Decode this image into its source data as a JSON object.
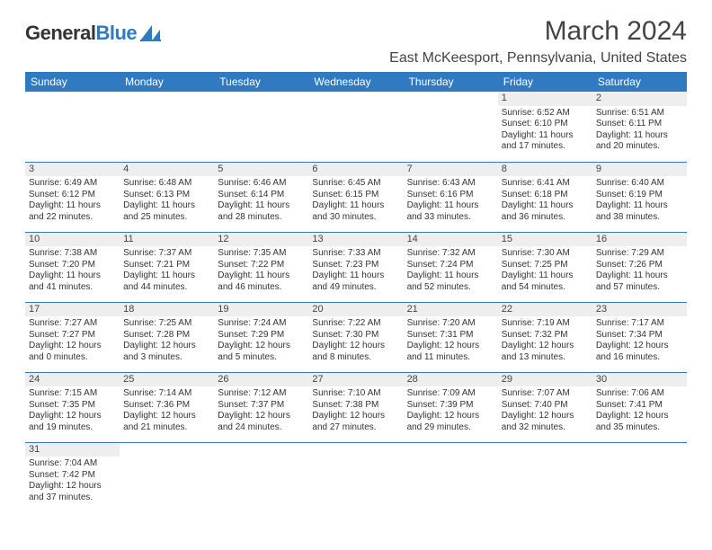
{
  "brand": {
    "part1": "General",
    "part2": "Blue"
  },
  "title": "March 2024",
  "location": "East McKeesport, Pennsylvania, United States",
  "colors": {
    "header_bg": "#2f7ac0",
    "header_fg": "#ffffff",
    "daynum_bg": "#eeeeee",
    "cell_border": "#2f7ac0",
    "text": "#333333",
    "brand_blue": "#2f7ac0"
  },
  "week_headers": [
    "Sunday",
    "Monday",
    "Tuesday",
    "Wednesday",
    "Thursday",
    "Friday",
    "Saturday"
  ],
  "days": {
    "1": {
      "sunrise": "Sunrise: 6:52 AM",
      "sunset": "Sunset: 6:10 PM",
      "day1": "Daylight: 11 hours",
      "day2": "and 17 minutes."
    },
    "2": {
      "sunrise": "Sunrise: 6:51 AM",
      "sunset": "Sunset: 6:11 PM",
      "day1": "Daylight: 11 hours",
      "day2": "and 20 minutes."
    },
    "3": {
      "sunrise": "Sunrise: 6:49 AM",
      "sunset": "Sunset: 6:12 PM",
      "day1": "Daylight: 11 hours",
      "day2": "and 22 minutes."
    },
    "4": {
      "sunrise": "Sunrise: 6:48 AM",
      "sunset": "Sunset: 6:13 PM",
      "day1": "Daylight: 11 hours",
      "day2": "and 25 minutes."
    },
    "5": {
      "sunrise": "Sunrise: 6:46 AM",
      "sunset": "Sunset: 6:14 PM",
      "day1": "Daylight: 11 hours",
      "day2": "and 28 minutes."
    },
    "6": {
      "sunrise": "Sunrise: 6:45 AM",
      "sunset": "Sunset: 6:15 PM",
      "day1": "Daylight: 11 hours",
      "day2": "and 30 minutes."
    },
    "7": {
      "sunrise": "Sunrise: 6:43 AM",
      "sunset": "Sunset: 6:16 PM",
      "day1": "Daylight: 11 hours",
      "day2": "and 33 minutes."
    },
    "8": {
      "sunrise": "Sunrise: 6:41 AM",
      "sunset": "Sunset: 6:18 PM",
      "day1": "Daylight: 11 hours",
      "day2": "and 36 minutes."
    },
    "9": {
      "sunrise": "Sunrise: 6:40 AM",
      "sunset": "Sunset: 6:19 PM",
      "day1": "Daylight: 11 hours",
      "day2": "and 38 minutes."
    },
    "10": {
      "sunrise": "Sunrise: 7:38 AM",
      "sunset": "Sunset: 7:20 PM",
      "day1": "Daylight: 11 hours",
      "day2": "and 41 minutes."
    },
    "11": {
      "sunrise": "Sunrise: 7:37 AM",
      "sunset": "Sunset: 7:21 PM",
      "day1": "Daylight: 11 hours",
      "day2": "and 44 minutes."
    },
    "12": {
      "sunrise": "Sunrise: 7:35 AM",
      "sunset": "Sunset: 7:22 PM",
      "day1": "Daylight: 11 hours",
      "day2": "and 46 minutes."
    },
    "13": {
      "sunrise": "Sunrise: 7:33 AM",
      "sunset": "Sunset: 7:23 PM",
      "day1": "Daylight: 11 hours",
      "day2": "and 49 minutes."
    },
    "14": {
      "sunrise": "Sunrise: 7:32 AM",
      "sunset": "Sunset: 7:24 PM",
      "day1": "Daylight: 11 hours",
      "day2": "and 52 minutes."
    },
    "15": {
      "sunrise": "Sunrise: 7:30 AM",
      "sunset": "Sunset: 7:25 PM",
      "day1": "Daylight: 11 hours",
      "day2": "and 54 minutes."
    },
    "16": {
      "sunrise": "Sunrise: 7:29 AM",
      "sunset": "Sunset: 7:26 PM",
      "day1": "Daylight: 11 hours",
      "day2": "and 57 minutes."
    },
    "17": {
      "sunrise": "Sunrise: 7:27 AM",
      "sunset": "Sunset: 7:27 PM",
      "day1": "Daylight: 12 hours",
      "day2": "and 0 minutes."
    },
    "18": {
      "sunrise": "Sunrise: 7:25 AM",
      "sunset": "Sunset: 7:28 PM",
      "day1": "Daylight: 12 hours",
      "day2": "and 3 minutes."
    },
    "19": {
      "sunrise": "Sunrise: 7:24 AM",
      "sunset": "Sunset: 7:29 PM",
      "day1": "Daylight: 12 hours",
      "day2": "and 5 minutes."
    },
    "20": {
      "sunrise": "Sunrise: 7:22 AM",
      "sunset": "Sunset: 7:30 PM",
      "day1": "Daylight: 12 hours",
      "day2": "and 8 minutes."
    },
    "21": {
      "sunrise": "Sunrise: 7:20 AM",
      "sunset": "Sunset: 7:31 PM",
      "day1": "Daylight: 12 hours",
      "day2": "and 11 minutes."
    },
    "22": {
      "sunrise": "Sunrise: 7:19 AM",
      "sunset": "Sunset: 7:32 PM",
      "day1": "Daylight: 12 hours",
      "day2": "and 13 minutes."
    },
    "23": {
      "sunrise": "Sunrise: 7:17 AM",
      "sunset": "Sunset: 7:34 PM",
      "day1": "Daylight: 12 hours",
      "day2": "and 16 minutes."
    },
    "24": {
      "sunrise": "Sunrise: 7:15 AM",
      "sunset": "Sunset: 7:35 PM",
      "day1": "Daylight: 12 hours",
      "day2": "and 19 minutes."
    },
    "25": {
      "sunrise": "Sunrise: 7:14 AM",
      "sunset": "Sunset: 7:36 PM",
      "day1": "Daylight: 12 hours",
      "day2": "and 21 minutes."
    },
    "26": {
      "sunrise": "Sunrise: 7:12 AM",
      "sunset": "Sunset: 7:37 PM",
      "day1": "Daylight: 12 hours",
      "day2": "and 24 minutes."
    },
    "27": {
      "sunrise": "Sunrise: 7:10 AM",
      "sunset": "Sunset: 7:38 PM",
      "day1": "Daylight: 12 hours",
      "day2": "and 27 minutes."
    },
    "28": {
      "sunrise": "Sunrise: 7:09 AM",
      "sunset": "Sunset: 7:39 PM",
      "day1": "Daylight: 12 hours",
      "day2": "and 29 minutes."
    },
    "29": {
      "sunrise": "Sunrise: 7:07 AM",
      "sunset": "Sunset: 7:40 PM",
      "day1": "Daylight: 12 hours",
      "day2": "and 32 minutes."
    },
    "30": {
      "sunrise": "Sunrise: 7:06 AM",
      "sunset": "Sunset: 7:41 PM",
      "day1": "Daylight: 12 hours",
      "day2": "and 35 minutes."
    },
    "31": {
      "sunrise": "Sunrise: 7:04 AM",
      "sunset": "Sunset: 7:42 PM",
      "day1": "Daylight: 12 hours",
      "day2": "and 37 minutes."
    }
  },
  "layout": [
    [
      null,
      null,
      null,
      null,
      null,
      "1",
      "2"
    ],
    [
      "3",
      "4",
      "5",
      "6",
      "7",
      "8",
      "9"
    ],
    [
      "10",
      "11",
      "12",
      "13",
      "14",
      "15",
      "16"
    ],
    [
      "17",
      "18",
      "19",
      "20",
      "21",
      "22",
      "23"
    ],
    [
      "24",
      "25",
      "26",
      "27",
      "28",
      "29",
      "30"
    ],
    [
      "31",
      null,
      null,
      null,
      null,
      null,
      null
    ]
  ]
}
